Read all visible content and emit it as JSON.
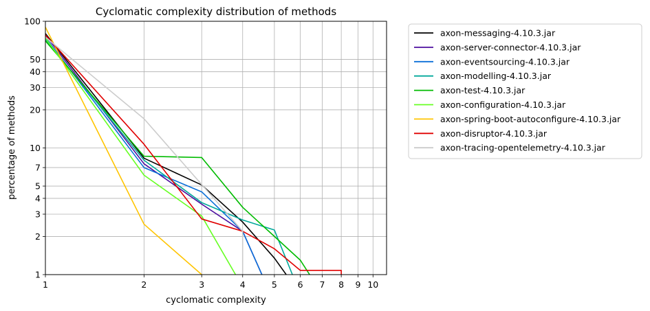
{
  "chart_data": {
    "type": "line",
    "title": "Cyclomatic complexity distribution of methods",
    "xlabel": "cyclomatic complexity",
    "ylabel": "percentage of methods",
    "x_scale": "log",
    "y_scale": "log",
    "xlim": [
      1,
      11
    ],
    "ylim": [
      1,
      100
    ],
    "x_ticks": [
      1,
      2,
      3,
      4,
      5,
      6,
      7,
      8,
      9,
      10
    ],
    "x_tick_labels": [
      "1",
      "2",
      "3",
      "4",
      "5",
      "6",
      "7",
      "8",
      "9",
      "10"
    ],
    "y_ticks": [
      1,
      2,
      3,
      4,
      5,
      7,
      10,
      20,
      30,
      40,
      50,
      100
    ],
    "y_tick_labels": [
      "1",
      "2",
      "3",
      "4",
      "5",
      "7",
      "10",
      "20",
      "30",
      "40",
      "50",
      "100"
    ],
    "grid": true,
    "legend_position": "outside-right",
    "series": [
      {
        "name": "axon-messaging-4.10.3.jar",
        "color": "#000000",
        "points": [
          [
            1,
            80
          ],
          [
            2,
            8.3
          ],
          [
            3,
            5.1
          ],
          [
            4,
            2.6
          ],
          [
            5,
            1.35
          ],
          [
            6,
            0.7
          ]
        ]
      },
      {
        "name": "axon-server-connector-4.10.3.jar",
        "color": "#4b0c9e",
        "points": [
          [
            1,
            78
          ],
          [
            2,
            7.5
          ],
          [
            3,
            3.6
          ],
          [
            4,
            2.2
          ],
          [
            5,
            0.6
          ]
        ]
      },
      {
        "name": "axon-eventsourcing-4.10.3.jar",
        "color": "#0a6fd8",
        "points": [
          [
            1,
            75
          ],
          [
            2,
            7.0
          ],
          [
            3,
            4.5
          ],
          [
            4,
            2.2
          ],
          [
            5,
            0.6
          ]
        ]
      },
      {
        "name": "axon-modelling-4.10.3.jar",
        "color": "#00a89a",
        "points": [
          [
            1,
            72
          ],
          [
            2,
            8.0
          ],
          [
            3,
            3.7
          ],
          [
            4,
            2.7
          ],
          [
            5,
            2.25
          ],
          [
            6,
            0.7
          ]
        ]
      },
      {
        "name": "axon-test-4.10.3.jar",
        "color": "#00bb00",
        "points": [
          [
            1,
            70
          ],
          [
            2,
            8.6
          ],
          [
            3,
            8.4
          ],
          [
            4,
            3.4
          ],
          [
            6,
            1.3
          ],
          [
            7,
            0.7
          ]
        ]
      },
      {
        "name": "axon-configuration-4.10.3.jar",
        "color": "#66ff22",
        "points": [
          [
            1,
            74
          ],
          [
            2,
            6.1
          ],
          [
            3,
            2.9
          ],
          [
            4,
            0.8
          ]
        ]
      },
      {
        "name": "axon-spring-boot-autoconfigure-4.10.3.jar",
        "color": "#ffc400",
        "points": [
          [
            1,
            90
          ],
          [
            2,
            2.5
          ],
          [
            3,
            1.0
          ]
        ]
      },
      {
        "name": "axon-disruptor-4.10.3.jar",
        "color": "#e00000",
        "points": [
          [
            1,
            78
          ],
          [
            2,
            10.7
          ],
          [
            3,
            2.75
          ],
          [
            4,
            2.2
          ],
          [
            5,
            1.6
          ],
          [
            6,
            1.08
          ],
          [
            8,
            1.08
          ],
          [
            8,
            1.0
          ]
        ]
      },
      {
        "name": "axon-tracing-opentelemetry-4.10.3.jar",
        "color": "#cccccc",
        "points": [
          [
            1,
            75
          ],
          [
            2,
            17
          ],
          [
            4,
            2.2
          ],
          [
            4,
            1.0
          ]
        ]
      }
    ]
  }
}
